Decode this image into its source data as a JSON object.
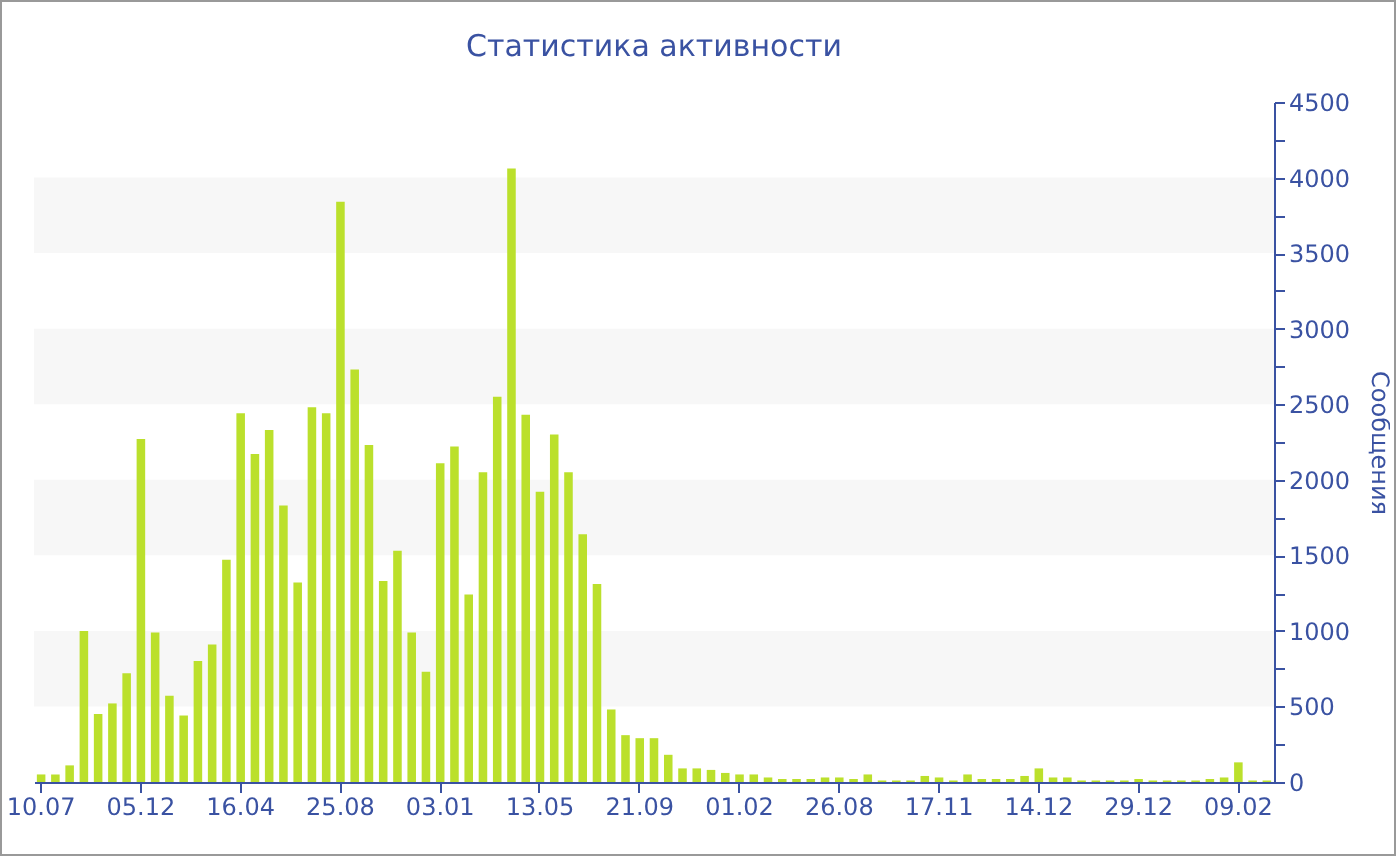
{
  "chart_data": {
    "type": "bar",
    "title": "Статистика активности",
    "ylabel": "Сообщения",
    "categories": [
      "10.07",
      null,
      null,
      null,
      null,
      null,
      null,
      "05.12",
      null,
      null,
      null,
      null,
      null,
      null,
      "16.04",
      null,
      null,
      null,
      null,
      null,
      null,
      "25.08",
      null,
      null,
      null,
      null,
      null,
      null,
      "03.01",
      null,
      null,
      null,
      null,
      null,
      null,
      "13.05",
      null,
      null,
      null,
      null,
      null,
      null,
      "21.09",
      null,
      null,
      null,
      null,
      null,
      null,
      "01.02",
      null,
      null,
      null,
      null,
      null,
      null,
      "26.08",
      null,
      null,
      null,
      null,
      null,
      null,
      "17.11",
      null,
      null,
      null,
      null,
      null,
      null,
      "14.12",
      null,
      null,
      null,
      null,
      null,
      null,
      "29.12",
      null,
      null,
      null,
      null,
      null,
      null,
      "09.02",
      null,
      null
    ],
    "values": [
      50,
      50,
      110,
      1000,
      450,
      520,
      720,
      2270,
      990,
      570,
      440,
      800,
      910,
      1470,
      2440,
      2170,
      2330,
      1830,
      1320,
      2480,
      2440,
      3840,
      2730,
      2230,
      1330,
      1530,
      990,
      730,
      2110,
      2220,
      1240,
      2050,
      2550,
      4060,
      2430,
      1920,
      2300,
      2050,
      1640,
      1310,
      480,
      310,
      290,
      290,
      180,
      90,
      90,
      80,
      60,
      50,
      50,
      30,
      20,
      20,
      20,
      30,
      30,
      20,
      50,
      10,
      10,
      10,
      40,
      30,
      10,
      50,
      20,
      20,
      20,
      40,
      90,
      30,
      30,
      10,
      10,
      10,
      10,
      20,
      10,
      10,
      10,
      10,
      20,
      30,
      130,
      10,
      10
    ],
    "color": "#bbe02c",
    "ylim": [
      0,
      4500
    ],
    "yticks": [
      0,
      {
        "value": 250,
        "label": null
      },
      500,
      {
        "value": 750,
        "label": null
      },
      1000,
      {
        "value": 1250,
        "label": null
      },
      1500,
      {
        "value": 1750,
        "label": null
      },
      2000,
      {
        "value": 2250,
        "label": null
      },
      2500,
      {
        "value": 2750,
        "label": null
      },
      3000,
      {
        "value": 3250,
        "label": null
      },
      3500,
      {
        "value": 3750,
        "label": null
      },
      4000,
      {
        "value": 4250,
        "label": null
      },
      4500
    ],
    "bands": [
      {
        "axis": "y",
        "from": 500,
        "to": 1000,
        "color": "#f7f7f7"
      },
      {
        "axis": "y",
        "from": 1500,
        "to": 2000,
        "color": "#f7f7f7"
      },
      {
        "axis": "y",
        "from": 2500,
        "to": 3000,
        "color": "#f7f7f7"
      },
      {
        "axis": "y",
        "from": 3500,
        "to": 4000,
        "color": "#f7f7f7"
      }
    ]
  }
}
